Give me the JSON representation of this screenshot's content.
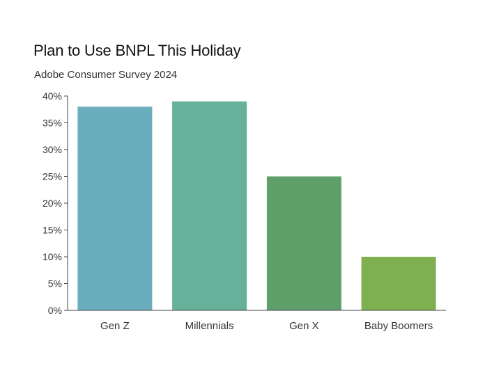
{
  "chart_data": {
    "type": "bar",
    "title": "Plan to Use BNPL This Holiday",
    "subtitle": "Adobe Consumer Survey 2024",
    "categories": [
      "Gen Z",
      "Millennials",
      "Gen X",
      "Baby Boomers"
    ],
    "values": [
      38,
      39,
      25,
      10
    ],
    "colors": [
      "#6aaebe",
      "#67b099",
      "#5fa06a",
      "#7eb052"
    ],
    "ylim": [
      0,
      40
    ],
    "yticks": [
      0,
      5,
      10,
      15,
      20,
      25,
      30,
      35,
      40
    ],
    "ytick_labels": [
      "0%",
      "5%",
      "10%",
      "15%",
      "20%",
      "25%",
      "30%",
      "35%",
      "40%"
    ],
    "xlabel": "",
    "ylabel": "",
    "grid": false
  }
}
